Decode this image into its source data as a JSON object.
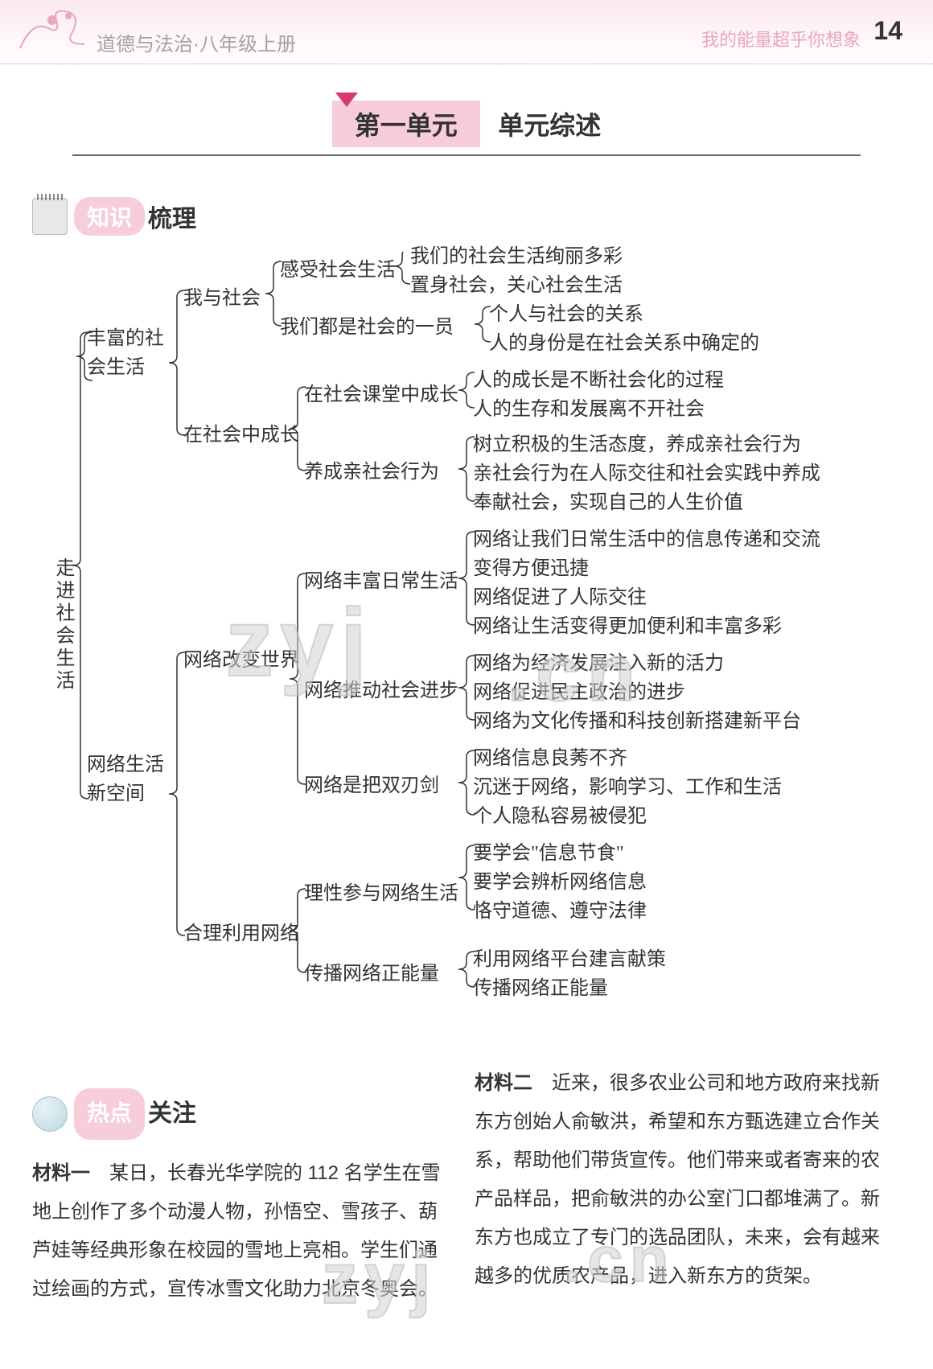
{
  "header": {
    "book_title": "道德与法治·八年级上册",
    "tagline": "我的能量超乎你想象",
    "page_number": "14"
  },
  "unit": {
    "title": "第一单元",
    "subtitle": "单元综述"
  },
  "sections": {
    "knowledge": {
      "pill": "知识",
      "rest": "梳理"
    },
    "hotspot": {
      "pill": "热点",
      "rest": "关注"
    }
  },
  "tree": {
    "root": "走进社会生活",
    "n1": "丰富的社会生活",
    "n1a": "我与社会",
    "n1a1": "感受社会生活",
    "n1a1_l1": "我们的社会生活绚丽多彩",
    "n1a1_l2": "置身社会，关心社会生活",
    "n1a2": "我们都是社会的一员",
    "n1a2_l1": "个人与社会的关系",
    "n1a2_l2": "人的身份是在社会关系中确定的",
    "n1b": "在社会中成长",
    "n1b1": "在社会课堂中成长",
    "n1b1_l1": "人的成长是不断社会化的过程",
    "n1b1_l2": "人的生存和发展离不开社会",
    "n1b2": "养成亲社会行为",
    "n1b2_l1": "树立积极的生活态度，养成亲社会行为",
    "n1b2_l2": "亲社会行为在人际交往和社会实践中养成",
    "n1b2_l3": "奉献社会，实现自己的人生价值",
    "n2": "网络生活新空间",
    "n2a": "网络改变世界",
    "n2a1": "网络丰富日常生活",
    "n2a1_l1": "网络让我们日常生活中的信息传递和交流变得方便迅捷",
    "n2a1_l1a": "网络让我们日常生活中的信息传递和交流",
    "n2a1_l1b": "变得方便迅捷",
    "n2a1_l2": "网络促进了人际交往",
    "n2a1_l3": "网络让生活变得更加便利和丰富多彩",
    "n2a2": "网络推动社会进步",
    "n2a2_l1": "网络为经济发展注入新的活力",
    "n2a2_l2": "网络促进民主政治的进步",
    "n2a2_l3": "网络为文化传播和科技创新搭建新平台",
    "n2a3": "网络是把双刃剑",
    "n2a3_l1": "网络信息良莠不齐",
    "n2a3_l2": "沉迷于网络，影响学习、工作和生活",
    "n2a3_l3": "个人隐私容易被侵犯",
    "n2b": "合理利用网络",
    "n2b1": "理性参与网络生活",
    "n2b1_l1": "要学会\"信息节食\"",
    "n2b1_l2": "要学会辨析网络信息",
    "n2b1_l3": "恪守道德、遵守法律",
    "n2b2": "传播网络正能量",
    "n2b2_l1": "利用网络平台建言献策",
    "n2b2_l2": "传播网络正能量"
  },
  "materials": {
    "m1_label": "材料一",
    "m1_text": "　某日，长春光华学院的 112 名学生在雪地上创作了多个动漫人物，孙悟空、雪孩子、葫芦娃等经典形象在校园的雪地上亮相。学生们通过绘画的方式，宣传冰雪文化助力北京冬奥会。",
    "m2_label": "材料二",
    "m2_text": "　近来，很多农业公司和地方政府来找新东方创始人俞敏洪，希望和东方甄选建立合作关系，帮助他们带货宣传。他们带来或者寄来的农产品样品，把俞敏洪的办公室门口都堆满了。新东方也成立了专门的选品团队，未来，会有越来越多的优质农产品，进入新东方的货架。"
  },
  "style": {
    "accent": "#f7cdd9",
    "accent_dark": "#d9376e",
    "text": "#333333",
    "light_text": "#a3a3a3",
    "bracket_stroke": "#333333",
    "bracket_width": 1.5,
    "kaiti_font": "KaiTi"
  }
}
